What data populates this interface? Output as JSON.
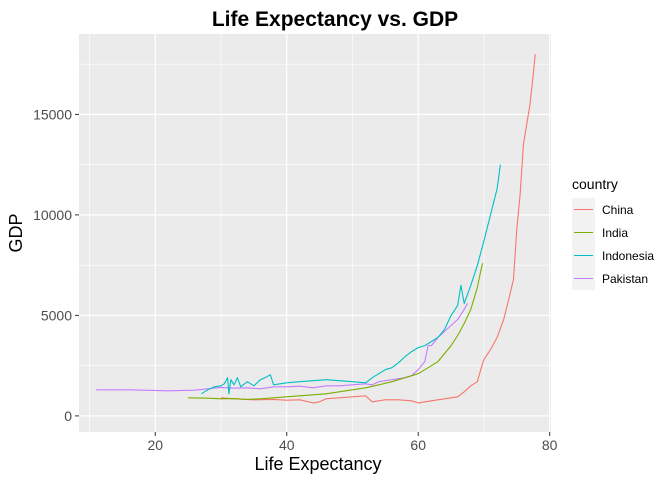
{
  "chart_data": {
    "type": "line",
    "title": "Life Expectancy vs. GDP",
    "xlabel": "Life Expectancy",
    "ylabel": "GDP",
    "xlim": [
      8.4,
      80.2
    ],
    "ylim": [
      -800,
      19000
    ],
    "x_ticks": [
      20,
      40,
      60,
      80
    ],
    "y_ticks": [
      0,
      5000,
      10000,
      15000
    ],
    "x_tick_labels": [
      "20",
      "40",
      "60",
      "80"
    ],
    "y_tick_labels": [
      "0",
      "5000",
      "10000",
      "15000"
    ],
    "grid": true,
    "legend": {
      "title": "country",
      "position": "right"
    },
    "series": [
      {
        "name": "Pakistan",
        "color": "#C77CFF",
        "points": [
          [
            11,
            1300
          ],
          [
            16,
            1300
          ],
          [
            22,
            1250
          ],
          [
            26,
            1280
          ],
          [
            28,
            1350
          ],
          [
            30,
            1420
          ],
          [
            32,
            1380
          ],
          [
            34,
            1400
          ],
          [
            36,
            1350
          ],
          [
            38,
            1450
          ],
          [
            40,
            1450
          ],
          [
            42,
            1480
          ],
          [
            44,
            1400
          ],
          [
            46,
            1500
          ],
          [
            48,
            1500
          ],
          [
            50,
            1550
          ],
          [
            52,
            1600
          ],
          [
            53,
            1550
          ],
          [
            54,
            1700
          ],
          [
            56,
            1800
          ],
          [
            58,
            1900
          ],
          [
            59,
            2000
          ],
          [
            60,
            2300
          ],
          [
            61,
            2700
          ],
          [
            61.5,
            3500
          ],
          [
            62,
            3500
          ],
          [
            63,
            3900
          ],
          [
            64,
            4200
          ],
          [
            65,
            4500
          ],
          [
            66,
            4800
          ],
          [
            67,
            5300
          ],
          [
            67.5,
            5600
          ]
        ]
      },
      {
        "name": "China",
        "color": "#F8766D",
        "points": [
          [
            30,
            900
          ],
          [
            32,
            850
          ],
          [
            35,
            800
          ],
          [
            38,
            820
          ],
          [
            40,
            780
          ],
          [
            42,
            800
          ],
          [
            44,
            650
          ],
          [
            45,
            700
          ],
          [
            46,
            850
          ],
          [
            48,
            900
          ],
          [
            50,
            950
          ],
          [
            52,
            1000
          ],
          [
            53,
            700
          ],
          [
            55,
            800
          ],
          [
            57,
            800
          ],
          [
            59,
            750
          ],
          [
            60,
            650
          ],
          [
            62,
            750
          ],
          [
            64,
            850
          ],
          [
            66,
            950
          ],
          [
            67,
            1200
          ],
          [
            68,
            1500
          ],
          [
            69,
            1700
          ],
          [
            69.5,
            2300
          ],
          [
            70,
            2800
          ],
          [
            71,
            3300
          ],
          [
            72,
            3900
          ],
          [
            73,
            4800
          ],
          [
            74,
            6100
          ],
          [
            74.5,
            6800
          ],
          [
            75,
            9300
          ],
          [
            75.5,
            11000
          ],
          [
            76,
            13500
          ],
          [
            76.5,
            14500
          ],
          [
            77,
            15500
          ],
          [
            77.5,
            17000
          ],
          [
            77.8,
            18000
          ]
        ]
      },
      {
        "name": "India",
        "color": "#7CAE00",
        "points": [
          [
            25,
            900
          ],
          [
            28,
            880
          ],
          [
            30,
            850
          ],
          [
            32,
            860
          ],
          [
            34,
            820
          ],
          [
            36,
            850
          ],
          [
            38,
            900
          ],
          [
            40,
            950
          ],
          [
            42,
            1000
          ],
          [
            44,
            1050
          ],
          [
            46,
            1100
          ],
          [
            48,
            1200
          ],
          [
            50,
            1300
          ],
          [
            52,
            1400
          ],
          [
            54,
            1550
          ],
          [
            56,
            1700
          ],
          [
            58,
            1900
          ],
          [
            60,
            2100
          ],
          [
            61,
            2300
          ],
          [
            62,
            2500
          ],
          [
            63,
            2700
          ],
          [
            64,
            3100
          ],
          [
            65,
            3500
          ],
          [
            66,
            4000
          ],
          [
            67,
            4600
          ],
          [
            68,
            5300
          ],
          [
            69,
            6400
          ],
          [
            69.5,
            7200
          ],
          [
            69.8,
            7600
          ]
        ]
      },
      {
        "name": "Indonesia",
        "color": "#00BFC4",
        "points": [
          [
            27,
            1100
          ],
          [
            28,
            1300
          ],
          [
            29,
            1450
          ],
          [
            30,
            1500
          ],
          [
            30.5,
            1600
          ],
          [
            31,
            1900
          ],
          [
            31.2,
            1100
          ],
          [
            31.5,
            1800
          ],
          [
            32,
            1550
          ],
          [
            32.5,
            1900
          ],
          [
            33,
            1450
          ],
          [
            34,
            1700
          ],
          [
            35,
            1500
          ],
          [
            36,
            1800
          ],
          [
            37,
            1950
          ],
          [
            37.5,
            2050
          ],
          [
            38,
            1550
          ],
          [
            39,
            1600
          ],
          [
            40,
            1650
          ],
          [
            42,
            1700
          ],
          [
            44,
            1750
          ],
          [
            46,
            1800
          ],
          [
            48,
            1750
          ],
          [
            50,
            1700
          ],
          [
            52,
            1650
          ],
          [
            53,
            1900
          ],
          [
            54,
            2100
          ],
          [
            55,
            2300
          ],
          [
            56,
            2400
          ],
          [
            57,
            2650
          ],
          [
            58,
            2950
          ],
          [
            59,
            3200
          ],
          [
            60,
            3400
          ],
          [
            61,
            3500
          ],
          [
            62,
            3700
          ],
          [
            63,
            3900
          ],
          [
            64,
            4300
          ],
          [
            65,
            5000
          ],
          [
            66,
            5500
          ],
          [
            66.5,
            6500
          ],
          [
            67,
            5600
          ],
          [
            68,
            6500
          ],
          [
            69,
            7500
          ],
          [
            70,
            8700
          ],
          [
            71,
            10000
          ],
          [
            72,
            11300
          ],
          [
            72.5,
            12500
          ]
        ]
      }
    ]
  }
}
